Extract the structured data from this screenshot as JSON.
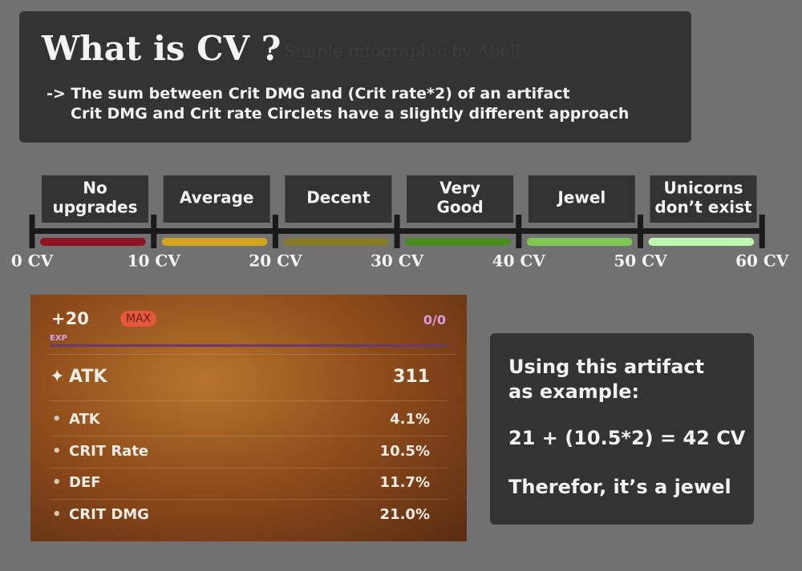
{
  "header": {
    "title": "What is CV ?",
    "subtitle": "Simple infographic by Abell",
    "lines": [
      "-> The sum between Crit DMG and (Crit rate*2) of an artifact",
      "Crit DMG and Crit rate Circlets have a slightly different approach"
    ]
  },
  "scale": {
    "tiers": [
      {
        "label": [
          "No",
          "upgrades"
        ],
        "color": "#8e1424"
      },
      {
        "label": [
          "Average"
        ],
        "color": "#d3a51c"
      },
      {
        "label": [
          "Decent"
        ],
        "color": "#857a2c"
      },
      {
        "label": [
          "Very",
          "Good"
        ],
        "color": "#4b8a22"
      },
      {
        "label": [
          "Jewel"
        ],
        "color": "#7ec655"
      },
      {
        "label": [
          "Unicorns",
          "don’t exist"
        ],
        "color": "#bdf7b0"
      }
    ],
    "ticks": [
      "0 CV",
      "10 CV",
      "20 CV",
      "30 CV",
      "40 CV",
      "50 CV",
      "60 CV"
    ]
  },
  "artifact": {
    "level": "+20",
    "badge": "MAX",
    "exp": "0/0",
    "exp_label": "EXP",
    "main_stat": {
      "name": "ATK",
      "value": "311"
    },
    "substats": [
      {
        "name": "ATK",
        "value": "4.1%"
      },
      {
        "name": "CRIT Rate",
        "value": "10.5%"
      },
      {
        "name": "DEF",
        "value": "11.7%"
      },
      {
        "name": "CRIT DMG",
        "value": "21.0%"
      }
    ]
  },
  "example": {
    "lines": [
      "Using this artifact",
      "as example:",
      "21 + (10.5*2) = 42 CV",
      "Therefor, it’s a jewel"
    ]
  }
}
